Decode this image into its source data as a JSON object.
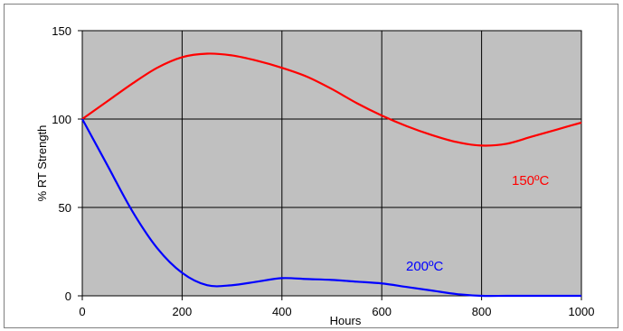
{
  "chart_data": {
    "type": "line",
    "title": "",
    "xlabel": "Hours",
    "ylabel": "% RT Strength",
    "xlim": [
      0,
      1000
    ],
    "ylim": [
      0,
      150
    ],
    "x_ticks": [
      "0",
      "200",
      "400",
      "600",
      "800",
      "1000"
    ],
    "y_ticks": [
      "0",
      "50",
      "100",
      "150"
    ],
    "x_tick_values": [
      0,
      200,
      400,
      600,
      800,
      1000
    ],
    "y_tick_values": [
      0,
      50,
      100,
      150
    ],
    "grid": true,
    "plot_background": "#c0c0c0",
    "series": [
      {
        "name": "150ºC",
        "color": "#ff0000",
        "x": [
          0,
          50,
          100,
          150,
          200,
          250,
          300,
          350,
          400,
          450,
          500,
          550,
          600,
          650,
          700,
          750,
          800,
          850,
          900,
          950,
          1000
        ],
        "y": [
          100,
          110,
          120,
          129,
          135,
          137,
          136,
          133,
          129,
          124,
          117,
          109,
          102,
          96,
          91,
          87,
          85,
          86,
          90,
          94,
          98
        ]
      },
      {
        "name": "200ºC",
        "color": "#0000ff",
        "x": [
          0,
          50,
          100,
          150,
          200,
          250,
          300,
          350,
          400,
          450,
          500,
          550,
          600,
          650,
          700,
          750,
          800,
          850,
          900,
          950,
          1000
        ],
        "y": [
          100,
          74,
          48,
          27,
          13,
          6,
          6,
          8,
          10,
          9.5,
          9,
          8,
          7,
          5,
          3,
          1,
          0,
          0,
          0,
          0,
          0
        ]
      }
    ]
  }
}
